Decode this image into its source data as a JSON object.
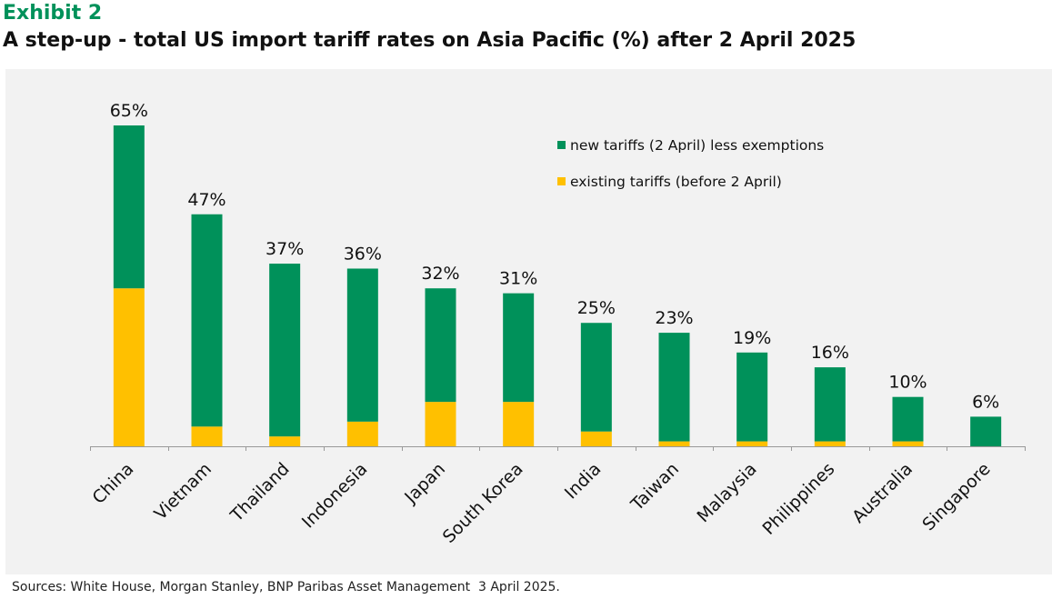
{
  "header": {
    "exhibit": "Exhibit 2",
    "title": "A step-up - total US import tariff rates on Asia Pacific (%) after 2 April 2025"
  },
  "footer": {
    "source": "Sources: White House, Morgan Stanley, BNP Paribas Asset Management  3 April 2025."
  },
  "colors": {
    "accent": "#00915a",
    "new_tariffs": "#00915a",
    "existing_tariffs": "#ffc000",
    "panel_bg": "#f2f2f2",
    "axis": "#999999"
  },
  "chart_data": {
    "type": "bar",
    "stacked": true,
    "categories": [
      "China",
      "Vietnam",
      "Thailand",
      "Indonesia",
      "Japan",
      "South Korea",
      "India",
      "Taiwan",
      "Malaysia",
      "Philippines",
      "Australia",
      "Singapore"
    ],
    "series": [
      {
        "name": "existing tariffs (before 2 April)",
        "color": "#ffc000",
        "values": [
          32,
          4,
          2,
          5,
          9,
          9,
          3,
          1,
          1,
          1,
          1,
          0
        ]
      },
      {
        "name": "new tariffs (2 April) less exemptions",
        "color": "#00915a",
        "values": [
          33,
          43,
          35,
          31,
          23,
          22,
          22,
          22,
          18,
          15,
          9,
          6
        ]
      }
    ],
    "totals": [
      65,
      47,
      37,
      36,
      32,
      31,
      25,
      23,
      19,
      16,
      10,
      6
    ],
    "total_labels": [
      "65%",
      "47%",
      "37%",
      "36%",
      "32%",
      "31%",
      "25%",
      "23%",
      "19%",
      "16%",
      "10%",
      "6%"
    ],
    "ylim": [
      0,
      65
    ],
    "grid": false,
    "legend_position": "top-right",
    "legend_order": [
      "new tariffs (2 April) less exemptions",
      "existing tariffs (before 2 April)"
    ]
  }
}
